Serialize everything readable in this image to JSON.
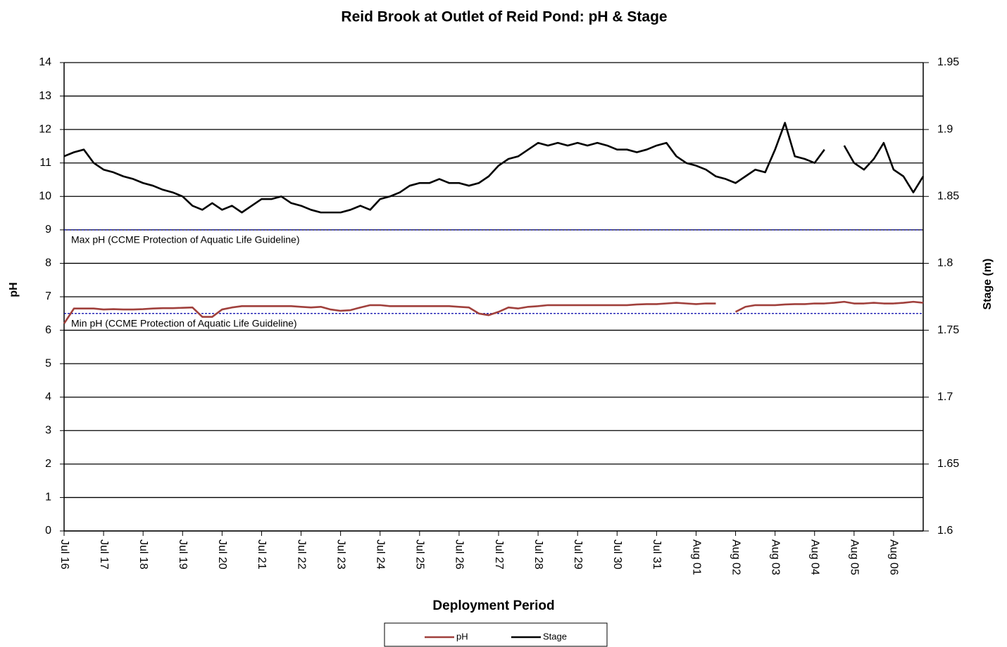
{
  "chart_data": {
    "type": "line",
    "title": "Reid Brook at Outlet of Reid Pond: pH & Stage",
    "x_label": "Deployment Period",
    "y_label": "pH",
    "y2_label": "Stage (m)",
    "categories": [
      "Jul 16",
      null,
      null,
      null,
      "Jul 17",
      null,
      null,
      null,
      "Jul 18",
      null,
      null,
      null,
      "Jul 19",
      null,
      null,
      null,
      "Jul 20",
      null,
      null,
      null,
      "Jul 21",
      null,
      null,
      null,
      "Jul 22",
      null,
      null,
      null,
      "Jul 23",
      null,
      null,
      null,
      "Jul 24",
      null,
      null,
      null,
      "Jul 25",
      null,
      null,
      null,
      "Jul 26",
      null,
      null,
      null,
      "Jul 27",
      null,
      null,
      null,
      "Jul 28",
      null,
      null,
      null,
      "Jul 29",
      null,
      null,
      null,
      "Jul 30",
      null,
      null,
      null,
      "Jul 31",
      null,
      null,
      null,
      "Aug 01",
      null,
      null,
      null,
      "Aug 02",
      null,
      null,
      null,
      "Aug 03",
      null,
      null,
      null,
      "Aug 04",
      null,
      null,
      null,
      "Aug 05",
      null,
      null,
      null,
      "Aug 06",
      null,
      null,
      null
    ],
    "series": [
      {
        "name": "pH",
        "color": "#a0403c",
        "axis": "y",
        "values": [
          6.2,
          6.65,
          6.65,
          6.65,
          6.62,
          6.63,
          6.62,
          6.62,
          6.63,
          6.65,
          6.66,
          6.66,
          6.67,
          6.68,
          6.4,
          6.4,
          6.62,
          6.68,
          6.72,
          6.72,
          6.72,
          6.72,
          6.72,
          6.72,
          6.7,
          6.68,
          6.7,
          6.62,
          6.58,
          6.6,
          6.68,
          6.75,
          6.75,
          6.72,
          6.72,
          6.72,
          6.72,
          6.72,
          6.72,
          6.72,
          6.7,
          6.68,
          6.5,
          6.45,
          6.55,
          6.68,
          6.65,
          6.7,
          6.72,
          6.75,
          6.75,
          6.75,
          6.75,
          6.75,
          6.75,
          6.75,
          6.75,
          6.75,
          6.77,
          6.78,
          6.78,
          6.8,
          6.82,
          6.8,
          6.78,
          6.8,
          6.8,
          null,
          6.55,
          6.7,
          6.75,
          6.75,
          6.75,
          6.77,
          6.78,
          6.78,
          6.8,
          6.8,
          6.82,
          6.85,
          6.8,
          6.8,
          6.82,
          6.8,
          6.8,
          6.82,
          6.85,
          6.82
        ]
      },
      {
        "name": "Stage",
        "color": "#000000",
        "axis": "y2",
        "values": [
          1.88,
          1.883,
          1.885,
          1.875,
          1.87,
          1.868,
          1.865,
          1.863,
          1.86,
          1.858,
          1.855,
          1.853,
          1.85,
          1.843,
          1.84,
          1.845,
          1.84,
          1.843,
          1.838,
          1.843,
          1.848,
          1.848,
          1.85,
          1.845,
          1.843,
          1.84,
          1.838,
          1.838,
          1.838,
          1.84,
          1.843,
          1.84,
          1.848,
          1.85,
          1.853,
          1.858,
          1.86,
          1.86,
          1.863,
          1.86,
          1.86,
          1.858,
          1.86,
          1.865,
          1.873,
          1.878,
          1.88,
          1.885,
          1.89,
          1.888,
          1.89,
          1.888,
          1.89,
          1.888,
          1.89,
          1.888,
          1.885,
          1.885,
          1.883,
          1.885,
          1.888,
          1.89,
          1.88,
          1.875,
          1.873,
          1.87,
          1.865,
          1.863,
          1.86,
          1.865,
          1.87,
          1.868,
          1.885,
          1.905,
          1.88,
          1.878,
          1.875,
          1.885,
          null,
          1.888,
          1.875,
          1.87,
          1.878,
          1.89,
          1.87,
          1.865,
          1.853,
          1.865
        ]
      }
    ],
    "reference_lines": [
      {
        "value": 9,
        "label": "Max pH  (CCME  Protection of Aquatic Life Guideline)",
        "color": "#0000aa"
      },
      {
        "value": 6.5,
        "label": "Min pH  (CCME  Protection of Aquatic Life Guideline)",
        "color": "#0000aa"
      }
    ],
    "ylim": [
      0,
      14
    ],
    "yticks": [
      0,
      1,
      2,
      3,
      4,
      5,
      6,
      7,
      8,
      9,
      10,
      11,
      12,
      13,
      14
    ],
    "y2lim": [
      1.6,
      1.95
    ],
    "y2ticks": [
      1.6,
      1.65,
      1.7,
      1.75,
      1.8,
      1.85,
      1.9,
      1.95
    ],
    "grid": true
  }
}
